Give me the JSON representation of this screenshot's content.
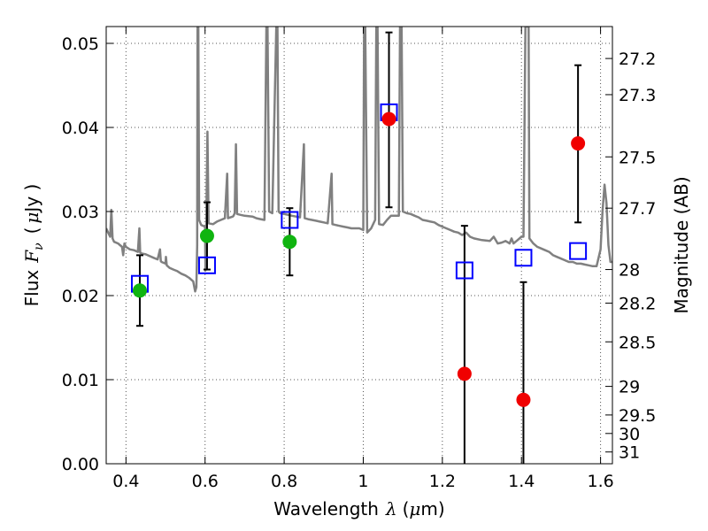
{
  "chart_data": {
    "type": "scatter",
    "xlabel_text": "Wavelength",
    "xlabel_symbol": "λ",
    "xlabel_unit_pre": "(",
    "xlabel_unit_mu": "μ",
    "xlabel_unit_post": "m)",
    "ylabel_text": "Flux",
    "ylabel_symbol": "F",
    "ylabel_symbol_sub": "ν",
    "ylabel_unit_pre": "(",
    "ylabel_unit_mu": "μ",
    "ylabel_unit_post": "Jy )",
    "y2label": "Magnitude (AB)",
    "xlim": [
      0.35,
      1.63
    ],
    "ylim": [
      0.0,
      0.052
    ],
    "grid": true,
    "x_ticks": [
      0.4,
      0.6,
      0.8,
      1.0,
      1.2,
      1.4,
      1.6
    ],
    "x_tick_labels": [
      "0.4",
      "0.6",
      "0.8",
      "1",
      "1.2",
      "1.4",
      "1.6"
    ],
    "y_ticks": [
      0.0,
      0.01,
      0.02,
      0.03,
      0.04,
      0.05
    ],
    "y_tick_labels": [
      "0.00",
      "0.01",
      "0.02",
      "0.03",
      "0.04",
      "0.05"
    ],
    "mag_ticks": [
      {
        "label": "27.2",
        "flux": 0.0482
      },
      {
        "label": "27.3",
        "flux": 0.0439
      },
      {
        "label": "27.5",
        "flux": 0.0365
      },
      {
        "label": "27.7",
        "flux": 0.0304
      },
      {
        "label": "28",
        "flux": 0.0231
      },
      {
        "label": "28.2",
        "flux": 0.0191
      },
      {
        "label": "28.5",
        "flux": 0.0145
      },
      {
        "label": "29",
        "flux": 0.0092
      },
      {
        "label": "29.5",
        "flux": 0.0058
      },
      {
        "label": "30",
        "flux": 0.0036
      },
      {
        "label": "31",
        "flux": 0.0014
      }
    ],
    "colors": {
      "spectrum": "#808080",
      "detection": "#10b410",
      "upper": "#f00000",
      "model": "#0000ff",
      "errorbar": "#000000",
      "grid": "#555555"
    },
    "observed": [
      {
        "x": 0.435,
        "y": 0.0206,
        "yerr_low": 0.0042,
        "yerr_high": 0.0042,
        "kind": "detection"
      },
      {
        "x": 0.605,
        "y": 0.0271,
        "yerr_low": 0.004,
        "yerr_high": 0.004,
        "kind": "detection"
      },
      {
        "x": 0.814,
        "y": 0.0264,
        "yerr_low": 0.004,
        "yerr_high": 0.004,
        "kind": "detection"
      },
      {
        "x": 1.065,
        "y": 0.041,
        "yerr_low": 0.0105,
        "yerr_high": 0.0103,
        "kind": "upper"
      },
      {
        "x": 1.256,
        "y": 0.0107,
        "yerr_low": 0.0107,
        "yerr_high": 0.0176,
        "kind": "upper"
      },
      {
        "x": 1.405,
        "y": 0.0076,
        "yerr_low": 0.0076,
        "yerr_high": 0.014,
        "kind": "upper"
      },
      {
        "x": 1.543,
        "y": 0.0381,
        "yerr_low": 0.0094,
        "yerr_high": 0.0093,
        "kind": "upper"
      }
    ],
    "model_points": [
      {
        "x": 0.435,
        "y": 0.0214
      },
      {
        "x": 0.605,
        "y": 0.0236
      },
      {
        "x": 0.814,
        "y": 0.029
      },
      {
        "x": 1.065,
        "y": 0.0418
      },
      {
        "x": 1.256,
        "y": 0.023
      },
      {
        "x": 1.405,
        "y": 0.0245
      },
      {
        "x": 1.543,
        "y": 0.0253
      }
    ],
    "spectrum": [
      [
        0.35,
        0.028
      ],
      [
        0.355,
        0.0275
      ],
      [
        0.36,
        0.027
      ],
      [
        0.363,
        0.0302
      ],
      [
        0.366,
        0.0268
      ],
      [
        0.37,
        0.0264
      ],
      [
        0.38,
        0.0262
      ],
      [
        0.385,
        0.026
      ],
      [
        0.39,
        0.0258
      ],
      [
        0.393,
        0.0248
      ],
      [
        0.396,
        0.0262
      ],
      [
        0.4,
        0.0258
      ],
      [
        0.41,
        0.0255
      ],
      [
        0.42,
        0.0254
      ],
      [
        0.43,
        0.0252
      ],
      [
        0.434,
        0.028
      ],
      [
        0.436,
        0.0251
      ],
      [
        0.44,
        0.025
      ],
      [
        0.45,
        0.0249
      ],
      [
        0.46,
        0.0247
      ],
      [
        0.47,
        0.0245
      ],
      [
        0.48,
        0.0243
      ],
      [
        0.486,
        0.0255
      ],
      [
        0.488,
        0.0241
      ],
      [
        0.49,
        0.024
      ],
      [
        0.5,
        0.0238
      ],
      [
        0.501,
        0.0246
      ],
      [
        0.503,
        0.0236
      ],
      [
        0.51,
        0.0233
      ],
      [
        0.52,
        0.0231
      ],
      [
        0.53,
        0.0229
      ],
      [
        0.54,
        0.0226
      ],
      [
        0.55,
        0.0224
      ],
      [
        0.56,
        0.0221
      ],
      [
        0.57,
        0.0217
      ],
      [
        0.575,
        0.0205
      ],
      [
        0.578,
        0.021
      ],
      [
        0.58,
        0.026
      ],
      [
        0.581,
        0.052
      ],
      [
        0.583,
        0.052
      ],
      [
        0.585,
        0.029
      ],
      [
        0.59,
        0.0284
      ],
      [
        0.6,
        0.0282
      ],
      [
        0.601,
        0.023
      ],
      [
        0.603,
        0.0284
      ],
      [
        0.606,
        0.0395
      ],
      [
        0.609,
        0.0286
      ],
      [
        0.62,
        0.0285
      ],
      [
        0.63,
        0.0288
      ],
      [
        0.64,
        0.029
      ],
      [
        0.65,
        0.0292
      ],
      [
        0.656,
        0.0345
      ],
      [
        0.658,
        0.0292
      ],
      [
        0.67,
        0.0294
      ],
      [
        0.672,
        0.0295
      ],
      [
        0.675,
        0.0298
      ],
      [
        0.678,
        0.038
      ],
      [
        0.681,
        0.0297
      ],
      [
        0.69,
        0.0296
      ],
      [
        0.7,
        0.0295
      ],
      [
        0.72,
        0.0294
      ],
      [
        0.73,
        0.0292
      ],
      [
        0.74,
        0.0291
      ],
      [
        0.75,
        0.029
      ],
      [
        0.755,
        0.052
      ],
      [
        0.758,
        0.052
      ],
      [
        0.762,
        0.03
      ],
      [
        0.77,
        0.0298
      ],
      [
        0.78,
        0.052
      ],
      [
        0.783,
        0.052
      ],
      [
        0.786,
        0.03
      ],
      [
        0.79,
        0.0298
      ],
      [
        0.8,
        0.0297
      ],
      [
        0.81,
        0.0296
      ],
      [
        0.82,
        0.0295
      ],
      [
        0.83,
        0.0294
      ],
      [
        0.84,
        0.0293
      ],
      [
        0.85,
        0.038
      ],
      [
        0.852,
        0.0292
      ],
      [
        0.86,
        0.0291
      ],
      [
        0.87,
        0.029
      ],
      [
        0.88,
        0.0289
      ],
      [
        0.89,
        0.0288
      ],
      [
        0.9,
        0.0287
      ],
      [
        0.91,
        0.0286
      ],
      [
        0.92,
        0.0345
      ],
      [
        0.922,
        0.0285
      ],
      [
        0.93,
        0.0284
      ],
      [
        0.94,
        0.0283
      ],
      [
        0.95,
        0.0282
      ],
      [
        0.96,
        0.0281
      ],
      [
        0.97,
        0.028
      ],
      [
        0.98,
        0.028
      ],
      [
        0.99,
        0.028
      ],
      [
        1.0,
        0.0278
      ],
      [
        1.002,
        0.052
      ],
      [
        1.005,
        0.052
      ],
      [
        1.01,
        0.0275
      ],
      [
        1.02,
        0.028
      ],
      [
        1.03,
        0.029
      ],
      [
        1.033,
        0.052
      ],
      [
        1.036,
        0.052
      ],
      [
        1.04,
        0.0285
      ],
      [
        1.05,
        0.0284
      ],
      [
        1.06,
        0.029
      ],
      [
        1.07,
        0.0295
      ],
      [
        1.09,
        0.0295
      ],
      [
        1.093,
        0.052
      ],
      [
        1.097,
        0.052
      ],
      [
        1.1,
        0.03
      ],
      [
        1.11,
        0.0298
      ],
      [
        1.12,
        0.0297
      ],
      [
        1.13,
        0.0295
      ],
      [
        1.14,
        0.0293
      ],
      [
        1.15,
        0.029
      ],
      [
        1.16,
        0.0289
      ],
      [
        1.17,
        0.0288
      ],
      [
        1.18,
        0.0287
      ],
      [
        1.19,
        0.0284
      ],
      [
        1.2,
        0.0282
      ],
      [
        1.21,
        0.028
      ],
      [
        1.22,
        0.0278
      ],
      [
        1.23,
        0.0276
      ],
      [
        1.24,
        0.0275
      ],
      [
        1.25,
        0.0272
      ],
      [
        1.26,
        0.0275
      ],
      [
        1.27,
        0.027
      ],
      [
        1.28,
        0.0268
      ],
      [
        1.3,
        0.0266
      ],
      [
        1.32,
        0.0265
      ],
      [
        1.33,
        0.027
      ],
      [
        1.34,
        0.0262
      ],
      [
        1.35,
        0.0263
      ],
      [
        1.36,
        0.0265
      ],
      [
        1.37,
        0.0262
      ],
      [
        1.375,
        0.0268
      ],
      [
        1.38,
        0.0262
      ],
      [
        1.39,
        0.0266
      ],
      [
        1.4,
        0.027
      ],
      [
        1.405,
        0.027
      ],
      [
        1.41,
        0.052
      ],
      [
        1.418,
        0.052
      ],
      [
        1.42,
        0.0268
      ],
      [
        1.43,
        0.0262
      ],
      [
        1.44,
        0.0258
      ],
      [
        1.45,
        0.0256
      ],
      [
        1.46,
        0.0254
      ],
      [
        1.47,
        0.0252
      ],
      [
        1.48,
        0.0248
      ],
      [
        1.49,
        0.0246
      ],
      [
        1.5,
        0.0244
      ],
      [
        1.51,
        0.0242
      ],
      [
        1.52,
        0.024
      ],
      [
        1.53,
        0.024
      ],
      [
        1.54,
        0.0238
      ],
      [
        1.55,
        0.0238
      ],
      [
        1.56,
        0.0237
      ],
      [
        1.57,
        0.0236
      ],
      [
        1.58,
        0.0235
      ],
      [
        1.59,
        0.0235
      ],
      [
        1.6,
        0.0255
      ],
      [
        1.605,
        0.03
      ],
      [
        1.61,
        0.0332
      ],
      [
        1.615,
        0.031
      ],
      [
        1.62,
        0.026
      ],
      [
        1.625,
        0.024
      ],
      [
        1.63,
        0.024
      ]
    ]
  }
}
